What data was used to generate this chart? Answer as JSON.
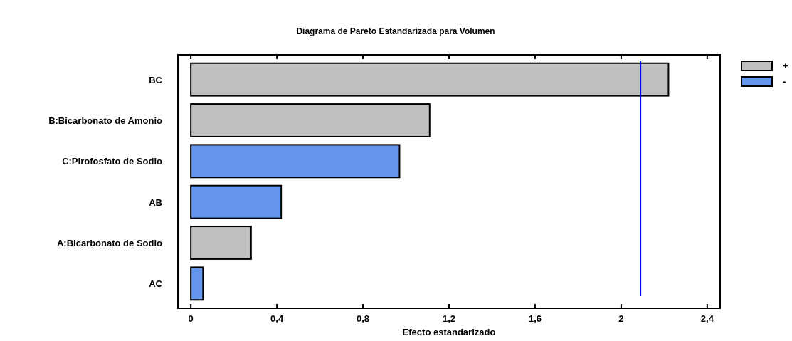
{
  "chart_data": {
    "type": "bar",
    "orientation": "horizontal",
    "title": "Diagrama de Pareto Estandarizada para Volumen",
    "xlabel": "Efecto estandarizado",
    "categories": [
      "BC",
      "B:Bicarbonato de Amonio",
      "C:Pirofosfato de Sodio",
      "AB",
      "A:Bicarbonato de Sodio",
      "AC"
    ],
    "series": [
      {
        "name": "+",
        "color": "#c0c0c0",
        "values": [
          2.22,
          1.11,
          null,
          null,
          0.28,
          null
        ]
      },
      {
        "name": "-",
        "color": "#6495ed",
        "values": [
          null,
          null,
          0.97,
          0.42,
          null,
          0.057
        ]
      }
    ],
    "xlim": [
      -0.06,
      2.46
    ],
    "xticks": [
      0,
      {
        "value": 0.4,
        "label": "0,4"
      },
      {
        "value": 0.8,
        "label": "0,8"
      },
      {
        "value": 1.2,
        "label": "1,2"
      },
      {
        "value": 1.6,
        "label": "1,6"
      },
      2,
      {
        "value": 2.4,
        "label": "2,4"
      }
    ],
    "ref_lines": [
      {
        "axis": "x",
        "value": 2.09,
        "color": "#0000ff"
      }
    ],
    "legend": "top right"
  }
}
